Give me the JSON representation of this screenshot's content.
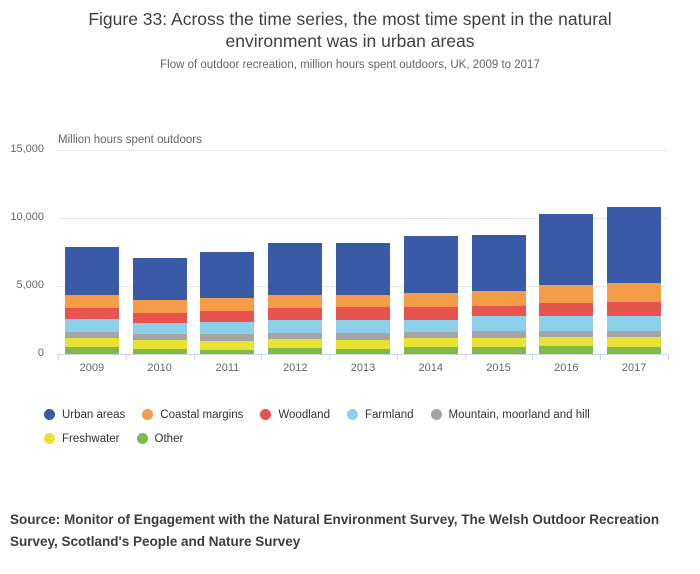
{
  "chart_data": {
    "type": "bar",
    "stacked": true,
    "title": "Figure 33: Across the time series, the most time spent in the natural environment was in urban areas",
    "subtitle": "Flow of outdoor recreation, million hours spent outdoors, UK, 2009 to 2017",
    "ylabel": "Million hours spent outdoors",
    "xlabel": "",
    "categories": [
      "2009",
      "2010",
      "2011",
      "2012",
      "2013",
      "2014",
      "2015",
      "2016",
      "2017"
    ],
    "ylim": [
      0,
      15000
    ],
    "yticks": [
      {
        "value": 0,
        "label": "0"
      },
      {
        "value": 5000,
        "label": "5,000"
      },
      {
        "value": 10000,
        "label": "10,000"
      },
      {
        "value": 15000,
        "label": "15,000"
      }
    ],
    "grid": "horizontal",
    "legend_position": "bottom",
    "stack_note": "first series renders on top of stack, last series at bottom",
    "series": [
      {
        "name": "Urban areas",
        "color": "#3A59A6",
        "values": [
          3550,
          3120,
          3345,
          3860,
          3785,
          4255,
          4160,
          5225,
          5620
        ]
      },
      {
        "name": "Coastal margins",
        "color": "#F59C49",
        "values": [
          985,
          965,
          990,
          985,
          890,
          995,
          1115,
          1295,
          1400
        ]
      },
      {
        "name": "Woodland",
        "color": "#E8534E",
        "values": [
          795,
          670,
          795,
          885,
          960,
          935,
          740,
          935,
          1050
        ]
      },
      {
        "name": "Farmland",
        "color": "#8CD1E9",
        "values": [
          940,
          820,
          915,
          910,
          990,
          895,
          1095,
          1145,
          1100
        ]
      },
      {
        "name": "Mountain, moorland and hill",
        "color": "#A5A5A5",
        "values": [
          495,
          500,
          500,
          500,
          500,
          445,
          540,
          445,
          400
        ]
      },
      {
        "name": "Freshwater",
        "color": "#E8E233",
        "values": [
          645,
          615,
          690,
          615,
          640,
          695,
          645,
          670,
          770
        ]
      },
      {
        "name": "Other",
        "color": "#81BA4B",
        "values": [
          470,
          350,
          225,
          425,
          350,
          470,
          470,
          540,
          470
        ]
      }
    ]
  },
  "source": {
    "text": "Source: Monitor of Engagement with the Natural Environment Survey, The Welsh Outdoor Recreation Survey, Scotland's People and Nature Survey"
  }
}
